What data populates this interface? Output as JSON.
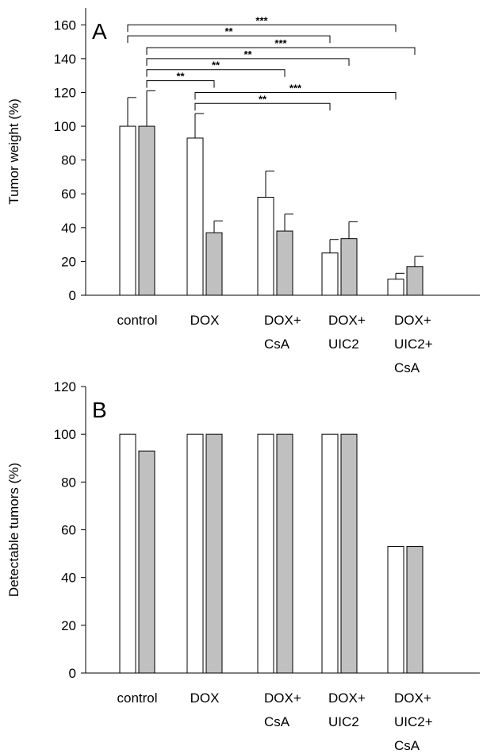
{
  "chart_data": [
    {
      "type": "bar",
      "panel_label": "A",
      "title": "",
      "xlabel": "",
      "ylabel": "Tumor weight (%)",
      "ylim": [
        0,
        170
      ],
      "yticks": [
        0,
        20,
        40,
        60,
        80,
        100,
        120,
        140,
        160
      ],
      "categories": [
        [
          "control"
        ],
        [
          "DOX"
        ],
        [
          "DOX+",
          "CsA"
        ],
        [
          "DOX+",
          "UIC2"
        ],
        [
          "DOX+",
          "UIC2+",
          "CsA"
        ]
      ],
      "series": [
        {
          "color": "#ffffff",
          "values": [
            100,
            93,
            58,
            25,
            9.5
          ],
          "errors": [
            17,
            14.5,
            15.5,
            8,
            3.5
          ]
        },
        {
          "color": "#c0c0c0",
          "values": [
            100,
            37,
            38,
            33.5,
            17
          ],
          "errors": [
            21,
            7,
            10,
            10,
            6
          ]
        }
      ],
      "annotations": [
        {
          "label": "***",
          "from": [
            0,
            0
          ],
          "to": [
            4,
            0
          ],
          "y": 160
        },
        {
          "label": "**",
          "from": [
            0,
            0
          ],
          "to": [
            3,
            0
          ],
          "y": 153.5
        },
        {
          "label": "***",
          "from": [
            0,
            1
          ],
          "to": [
            4,
            1
          ],
          "y": 146.5
        },
        {
          "label": "**",
          "from": [
            0,
            1
          ],
          "to": [
            3,
            1
          ],
          "y": 140
        },
        {
          "label": "**",
          "from": [
            0,
            1
          ],
          "to": [
            2,
            1
          ],
          "y": 133.5
        },
        {
          "label": "**",
          "from": [
            0,
            1
          ],
          "to": [
            1,
            1
          ],
          "y": 127
        },
        {
          "label": "***",
          "from": [
            1,
            0
          ],
          "to": [
            4,
            0
          ],
          "y": 120
        },
        {
          "label": "**",
          "from": [
            1,
            0
          ],
          "to": [
            3,
            0
          ],
          "y": 113.5
        }
      ]
    },
    {
      "type": "bar",
      "panel_label": "B",
      "title": "",
      "xlabel": "",
      "ylabel": "Detectable tumors (%)",
      "ylim": [
        0,
        120
      ],
      "yticks": [
        0,
        20,
        40,
        60,
        80,
        100,
        120
      ],
      "categories": [
        [
          "control"
        ],
        [
          "DOX"
        ],
        [
          "DOX+",
          "CsA"
        ],
        [
          "DOX+",
          "UIC2"
        ],
        [
          "DOX+",
          "UIC2+",
          "CsA"
        ]
      ],
      "series": [
        {
          "color": "#ffffff",
          "values": [
            100,
            100,
            100,
            100,
            53
          ]
        },
        {
          "color": "#c0c0c0",
          "values": [
            93,
            100,
            100,
            100,
            53
          ]
        }
      ]
    }
  ]
}
